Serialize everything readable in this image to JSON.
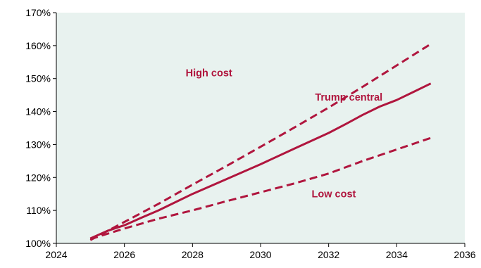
{
  "chart_data": {
    "type": "line",
    "title": "",
    "xlabel": "",
    "ylabel": "",
    "xlim": [
      2024,
      2036
    ],
    "ylim": [
      100,
      170
    ],
    "x_ticks": [
      "2024",
      "2026",
      "2028",
      "2030",
      "2032",
      "2034",
      "2036"
    ],
    "y_ticks": [
      "100%",
      "110%",
      "120%",
      "130%",
      "140%",
      "150%",
      "160%",
      "170%"
    ],
    "grid": false,
    "plot_background": "#e8f2ef",
    "series": [
      {
        "name": "High cost",
        "color": "#b0163e",
        "dash": "dashed",
        "x": [
          2025.0,
          2026.0,
          2027.0,
          2028.0,
          2029.0,
          2030.0,
          2031.0,
          2032.0,
          2033.0,
          2034.0,
          2035.0
        ],
        "values": [
          101.0,
          106.5,
          112.0,
          117.8,
          123.5,
          129.3,
          135.2,
          141.2,
          147.5,
          154.0,
          160.5
        ]
      },
      {
        "name": "Trump central",
        "color": "#b0163e",
        "dash": "solid",
        "x": [
          2025.0,
          2025.5,
          2026.0,
          2026.5,
          2027.0,
          2027.5,
          2028.0,
          2029.0,
          2030.0,
          2031.0,
          2032.0,
          2032.5,
          2033.0,
          2033.5,
          2034.0,
          2034.5,
          2035.0
        ],
        "values": [
          101.5,
          103.8,
          105.5,
          107.8,
          110.0,
          112.5,
          115.0,
          119.5,
          124.0,
          128.8,
          133.5,
          136.2,
          139.0,
          141.5,
          143.5,
          146.0,
          148.5
        ]
      },
      {
        "name": "Low cost",
        "color": "#b0163e",
        "dash": "dashed",
        "x": [
          2025.0,
          2026.0,
          2027.0,
          2028.0,
          2029.0,
          2030.0,
          2031.0,
          2032.0,
          2033.0,
          2034.0,
          2035.0
        ],
        "values": [
          101.3,
          104.5,
          107.5,
          110.0,
          112.8,
          115.5,
          118.2,
          121.2,
          125.0,
          128.5,
          132.0
        ]
      }
    ],
    "annotations": [
      {
        "text": "High cost",
        "x": 2027.8,
        "y": 150.7,
        "color": "#b0163e"
      },
      {
        "text": "Trump central",
        "x": 2031.6,
        "y": 143.3,
        "color": "#b0163e"
      },
      {
        "text": "Low cost",
        "x": 2031.5,
        "y": 114.0,
        "color": "#b0163e"
      }
    ]
  }
}
